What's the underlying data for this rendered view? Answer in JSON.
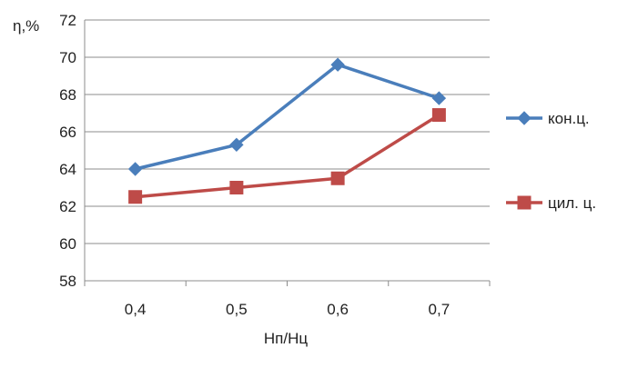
{
  "chart_data": {
    "type": "line",
    "ylabel": "η,%",
    "xlabel": "Нп/Нц",
    "categories": [
      "0,4",
      "0,5",
      "0,6",
      "0,7"
    ],
    "ylim": [
      58,
      72
    ],
    "yticks": [
      "58",
      "60",
      "62",
      "64",
      "66",
      "68",
      "70",
      "72"
    ],
    "grid": "horizontal",
    "legend": "right",
    "series": [
      {
        "name": "кон.ц.",
        "values": [
          64.0,
          65.3,
          69.6,
          67.8
        ],
        "color": "#4a7ebb",
        "marker": "diamond"
      },
      {
        "name": "цил. ц.",
        "values": [
          62.5,
          63.0,
          63.5,
          66.9
        ],
        "color": "#be4b48",
        "marker": "square"
      }
    ]
  }
}
